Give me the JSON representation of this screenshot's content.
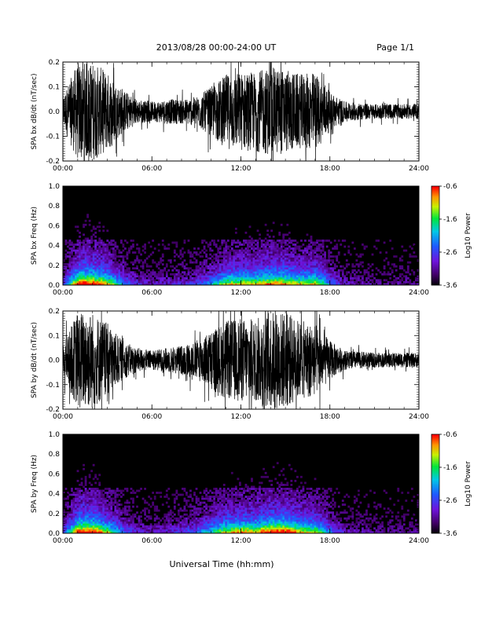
{
  "header": {
    "title": "2013/08/28  00:00-24:00 UT",
    "page": "Page 1/1"
  },
  "footer": {
    "xlabel": "Universal Time (hh:mm)"
  },
  "chart_data": [
    {
      "type": "line",
      "ylabel": "SPA bx dB/dt (nT/sec)",
      "ylim": [
        -0.2,
        0.2
      ],
      "yticks": [
        "0.2",
        "0.1",
        "0.0",
        "-0.1",
        "-0.2"
      ],
      "xlim": [
        "00:00",
        "24:00"
      ],
      "xticks": [
        "00:00",
        "06:00",
        "12:00",
        "18:00",
        "24:00"
      ],
      "series": [
        {
          "x": [
            "00:00",
            "01:00",
            "02:00",
            "03:00",
            "04:00",
            "05:00",
            "06:00",
            "07:00",
            "08:00",
            "09:00",
            "10:00",
            "11:00",
            "12:00",
            "13:00",
            "14:00",
            "15:00",
            "16:00",
            "17:00",
            "18:00",
            "19:00",
            "20:00",
            "21:00",
            "22:00",
            "23:00",
            "24:00"
          ],
          "amplitude": [
            0.06,
            0.2,
            0.2,
            0.16,
            0.09,
            0.05,
            0.04,
            0.05,
            0.05,
            0.06,
            0.1,
            0.15,
            0.16,
            0.16,
            0.18,
            0.17,
            0.15,
            0.16,
            0.08,
            0.04,
            0.035,
            0.03,
            0.03,
            0.03,
            0.03
          ]
        }
      ]
    },
    {
      "type": "heatmap",
      "ylabel": "SPA bx Freq (Hz)",
      "ylim": [
        0.0,
        1.0
      ],
      "yticks": [
        "1.0",
        "0.8",
        "0.6",
        "0.4",
        "0.2",
        "0.0"
      ],
      "xticks": [
        "00:00",
        "06:00",
        "12:00",
        "18:00",
        "24:00"
      ],
      "colorbar": {
        "label": "Log10 Power",
        "range": [
          -3.6,
          -0.6
        ],
        "ticks": [
          "-0.6",
          "-1.6",
          "-2.6",
          "-3.6"
        ]
      }
    },
    {
      "type": "line",
      "ylabel": "SPA by dB/dt (nT/sec)",
      "ylim": [
        -0.2,
        0.2
      ],
      "yticks": [
        "0.2",
        "0.1",
        "0.0",
        "-0.1",
        "-0.2"
      ],
      "xlim": [
        "00:00",
        "24:00"
      ],
      "xticks": [
        "00:00",
        "06:00",
        "12:00",
        "18:00",
        "24:00"
      ],
      "series": [
        {
          "x": [
            "00:00",
            "01:00",
            "02:00",
            "03:00",
            "04:00",
            "05:00",
            "06:00",
            "07:00",
            "08:00",
            "09:00",
            "10:00",
            "11:00",
            "12:00",
            "13:00",
            "14:00",
            "15:00",
            "16:00",
            "17:00",
            "18:00",
            "19:00",
            "20:00",
            "21:00",
            "22:00",
            "23:00",
            "24:00"
          ],
          "amplitude": [
            0.06,
            0.2,
            0.2,
            0.15,
            0.08,
            0.05,
            0.04,
            0.05,
            0.06,
            0.08,
            0.12,
            0.16,
            0.17,
            0.17,
            0.2,
            0.2,
            0.16,
            0.15,
            0.08,
            0.04,
            0.035,
            0.03,
            0.03,
            0.03,
            0.03
          ]
        }
      ]
    },
    {
      "type": "heatmap",
      "ylabel": "SPA by Freq (Hz)",
      "ylim": [
        0.0,
        1.0
      ],
      "yticks": [
        "1.0",
        "0.8",
        "0.6",
        "0.4",
        "0.2",
        "0.0"
      ],
      "xticks": [
        "00:00",
        "06:00",
        "12:00",
        "18:00",
        "24:00"
      ],
      "colorbar": {
        "label": "Log10 Power",
        "range": [
          -3.6,
          -0.6
        ],
        "ticks": [
          "-0.6",
          "-1.6",
          "-2.6",
          "-3.6"
        ]
      }
    }
  ]
}
